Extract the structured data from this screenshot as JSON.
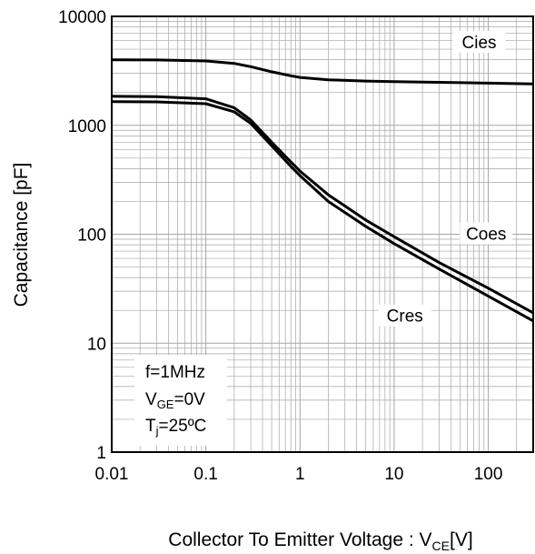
{
  "chart_data": {
    "type": "line",
    "xlabel": {
      "main": "Collector To Emitter Voltage : V",
      "sub": "CE",
      "unit": "[V]"
    },
    "ylabel": "Capacitance [pF]",
    "xscale": "log",
    "yscale": "log",
    "xlim": [
      0.01,
      300
    ],
    "ylim": [
      1,
      10000
    ],
    "grid": true,
    "x_ticks": [
      {
        "value": 0.01,
        "label": "0.01"
      },
      {
        "value": 0.1,
        "label": "0.1"
      },
      {
        "value": 1,
        "label": "1"
      },
      {
        "value": 10,
        "label": "10"
      },
      {
        "value": 100,
        "label": "100"
      }
    ],
    "y_ticks": [
      {
        "value": 1,
        "label": "1"
      },
      {
        "value": 10,
        "label": "10"
      },
      {
        "value": 100,
        "label": "100"
      },
      {
        "value": 1000,
        "label": "1000"
      },
      {
        "value": 10000,
        "label": "10000"
      }
    ],
    "series": [
      {
        "name": "Cies",
        "label_at": [
          80,
          5500
        ],
        "x": [
          0.01,
          0.03,
          0.1,
          0.2,
          0.3,
          0.5,
          0.8,
          1,
          2,
          5,
          10,
          30,
          100,
          300
        ],
        "y": [
          4000,
          3980,
          3900,
          3700,
          3450,
          3100,
          2850,
          2750,
          2620,
          2550,
          2520,
          2480,
          2440,
          2400
        ]
      },
      {
        "name": "Coes",
        "label_at": [
          95,
          96
        ],
        "x": [
          0.01,
          0.03,
          0.1,
          0.2,
          0.3,
          0.5,
          0.8,
          1,
          2,
          5,
          10,
          30,
          100,
          300
        ],
        "y": [
          1850,
          1830,
          1750,
          1450,
          1120,
          700,
          460,
          380,
          230,
          135,
          95,
          55,
          32,
          19
        ]
      },
      {
        "name": "Cres",
        "label_at": [
          13,
          17
        ],
        "x": [
          0.01,
          0.03,
          0.1,
          0.2,
          0.3,
          0.5,
          0.8,
          1,
          2,
          5,
          10,
          30,
          100,
          300
        ],
        "y": [
          1650,
          1640,
          1580,
          1330,
          1040,
          650,
          420,
          345,
          200,
          118,
          82,
          48,
          27,
          16
        ]
      }
    ],
    "annotations": {
      "freq": "f=1MHz",
      "vge_main": "V",
      "vge_sub": "GE",
      "vge_val": "=0V",
      "tj_main": "T",
      "tj_sub": "j",
      "tj_val": "=25ºC"
    },
    "colors": {
      "line": "#000000",
      "grid": "#a6a6a6",
      "frame": "#000000"
    }
  }
}
